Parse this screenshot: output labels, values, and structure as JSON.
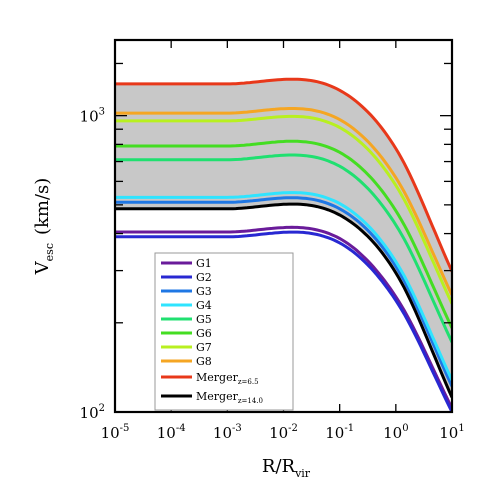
{
  "chart_data": {
    "type": "line",
    "xlabel": "R/R",
    "xlabel_sub": "vir",
    "ylabel": "V",
    "ylabel_sub": "esc",
    "ylabel_unit": "(km/s)",
    "xscale": "log",
    "yscale": "log",
    "xlim": [
      1e-05,
      10
    ],
    "ylim": [
      100,
      1800
    ],
    "x_tick_labels": [
      {
        "base": "10",
        "exp": "-5"
      },
      {
        "base": "10",
        "exp": "-4"
      },
      {
        "base": "10",
        "exp": "-3"
      },
      {
        "base": "10",
        "exp": "-2"
      },
      {
        "base": "10",
        "exp": "-1"
      },
      {
        "base": "10",
        "exp": "0"
      },
      {
        "base": "10",
        "exp": "1"
      }
    ],
    "y_tick_labels": [
      {
        "base": "10",
        "exp": "2"
      },
      {
        "base": "10",
        "exp": "3"
      }
    ],
    "legend_position": "lower-left",
    "shaded_band": {
      "between": [
        "Merger_z=6.5",
        "Merger_z=14.0"
      ],
      "color": "#c8c8c8"
    },
    "series": [
      {
        "name": "G1",
        "color": "#6a1b9a",
        "x": [
          1e-05,
          0.001,
          0.1,
          1,
          10
        ],
        "values": [
          405,
          405,
          385,
          245,
          103
        ]
      },
      {
        "name": "G2",
        "color": "#2828d2",
        "x": [
          1e-05,
          0.001,
          0.1,
          1,
          10
        ],
        "values": [
          390,
          390,
          372,
          238,
          100
        ]
      },
      {
        "name": "G3",
        "color": "#1f77e4",
        "x": [
          1e-05,
          0.001,
          0.1,
          1,
          10
        ],
        "values": [
          510,
          510,
          485,
          310,
          122
        ]
      },
      {
        "name": "G4",
        "color": "#2fe4ff",
        "x": [
          1e-05,
          0.001,
          0.1,
          1,
          10
        ],
        "values": [
          530,
          530,
          505,
          322,
          128
        ]
      },
      {
        "name": "G5",
        "color": "#20e070",
        "x": [
          1e-05,
          0.001,
          0.1,
          1,
          10
        ],
        "values": [
          710,
          710,
          675,
          428,
          172
        ]
      },
      {
        "name": "G6",
        "color": "#44dd22",
        "x": [
          1e-05,
          0.001,
          0.1,
          1,
          10
        ],
        "values": [
          790,
          790,
          752,
          478,
          192
        ]
      },
      {
        "name": "G7",
        "color": "#b8f020",
        "x": [
          1e-05,
          0.001,
          0.1,
          1,
          10
        ],
        "values": [
          960,
          960,
          912,
          582,
          232
        ]
      },
      {
        "name": "G8",
        "color": "#f5a623",
        "x": [
          1e-05,
          0.001,
          0.1,
          1,
          10
        ],
        "values": [
          1020,
          1020,
          970,
          618,
          248
        ]
      },
      {
        "name": "Merger",
        "name_sub": "z=6.5",
        "color": "#e8381a",
        "x": [
          1e-05,
          0.001,
          0.1,
          1,
          10
        ],
        "values": [
          1280,
          1280,
          1218,
          775,
          298
        ]
      },
      {
        "name": "Merger",
        "name_sub": "z=14.0",
        "color": "#000000",
        "x": [
          1e-05,
          0.001,
          0.1,
          1,
          10
        ],
        "values": [
          485,
          485,
          462,
          295,
          112
        ]
      }
    ]
  }
}
